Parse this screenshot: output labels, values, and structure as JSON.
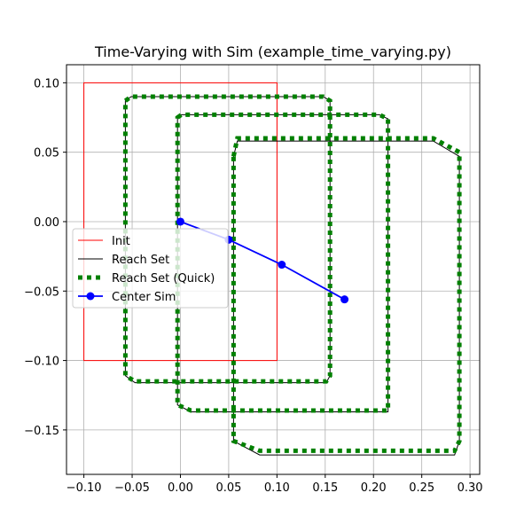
{
  "chart_data": {
    "type": "line",
    "title": "Time-Varying with Sim (example_time_varying.py)",
    "xlabel": "",
    "ylabel": "",
    "xlim": [
      -0.118,
      0.31
    ],
    "ylim": [
      -0.182,
      0.113
    ],
    "xticks": [
      -0.1,
      -0.05,
      0.0,
      0.05,
      0.1,
      0.15,
      0.2,
      0.25,
      0.3
    ],
    "xtick_labels": [
      "−0.10",
      "−0.05",
      "0.00",
      "0.05",
      "0.10",
      "0.15",
      "0.20",
      "0.25",
      "0.30"
    ],
    "yticks": [
      0.1,
      0.05,
      0.0,
      -0.05,
      -0.1,
      -0.15
    ],
    "ytick_labels": [
      "0.10",
      "0.05",
      "0.00",
      "−0.05",
      "−0.10",
      "−0.15"
    ],
    "grid": true,
    "legend_position": "center-left",
    "series": [
      {
        "name": "Init",
        "style": "solid",
        "color": "#ff0000",
        "polygons": [
          [
            [
              -0.1,
              -0.1
            ],
            [
              0.1,
              -0.1
            ],
            [
              0.1,
              0.1
            ],
            [
              -0.1,
              0.1
            ]
          ]
        ]
      },
      {
        "name": "Reach Set",
        "style": "solid",
        "color": "#000000",
        "polygons": [
          [
            [
              -0.057,
              0.087
            ],
            [
              -0.051,
              0.09
            ],
            [
              0.148,
              0.09
            ],
            [
              0.155,
              0.087
            ],
            [
              0.155,
              -0.111
            ],
            [
              0.151,
              -0.116
            ],
            [
              -0.047,
              -0.116
            ],
            [
              -0.057,
              -0.111
            ]
          ],
          [
            [
              -0.003,
              0.075
            ],
            [
              0.001,
              0.077
            ],
            [
              0.206,
              0.077
            ],
            [
              0.215,
              0.074
            ],
            [
              0.215,
              -0.137
            ],
            [
              0.011,
              -0.137
            ],
            [
              -0.003,
              -0.132
            ]
          ],
          [
            [
              0.055,
              0.047
            ],
            [
              0.059,
              0.058
            ],
            [
              0.262,
              0.058
            ],
            [
              0.289,
              0.047
            ],
            [
              0.289,
              -0.158
            ],
            [
              0.284,
              -0.168
            ],
            [
              0.082,
              -0.168
            ],
            [
              0.055,
              -0.158
            ]
          ]
        ]
      },
      {
        "name": "Reach Set (Quick)",
        "style": "dotted",
        "color": "#008000",
        "polygons": [
          [
            [
              -0.057,
              0.087
            ],
            [
              -0.051,
              0.09
            ],
            [
              0.148,
              0.09
            ],
            [
              0.155,
              0.087
            ],
            [
              0.155,
              -0.111
            ],
            [
              0.151,
              -0.115
            ],
            [
              -0.047,
              -0.115
            ],
            [
              -0.057,
              -0.111
            ]
          ],
          [
            [
              -0.003,
              0.075
            ],
            [
              0.001,
              0.077
            ],
            [
              0.206,
              0.077
            ],
            [
              0.215,
              0.074
            ],
            [
              0.215,
              -0.136
            ],
            [
              0.011,
              -0.136
            ],
            [
              -0.003,
              -0.132
            ]
          ],
          [
            [
              0.055,
              0.047
            ],
            [
              0.059,
              0.06
            ],
            [
              0.262,
              0.06
            ],
            [
              0.289,
              0.05
            ],
            [
              0.289,
              -0.158
            ],
            [
              0.284,
              -0.165
            ],
            [
              0.082,
              -0.165
            ],
            [
              0.055,
              -0.158
            ]
          ]
        ]
      },
      {
        "name": "Center Sim",
        "style": "solid-marker",
        "color": "#0000ff",
        "x": [
          0.0,
          0.05,
          0.105,
          0.17
        ],
        "y": [
          0.0,
          -0.013,
          -0.031,
          -0.056
        ]
      }
    ]
  }
}
